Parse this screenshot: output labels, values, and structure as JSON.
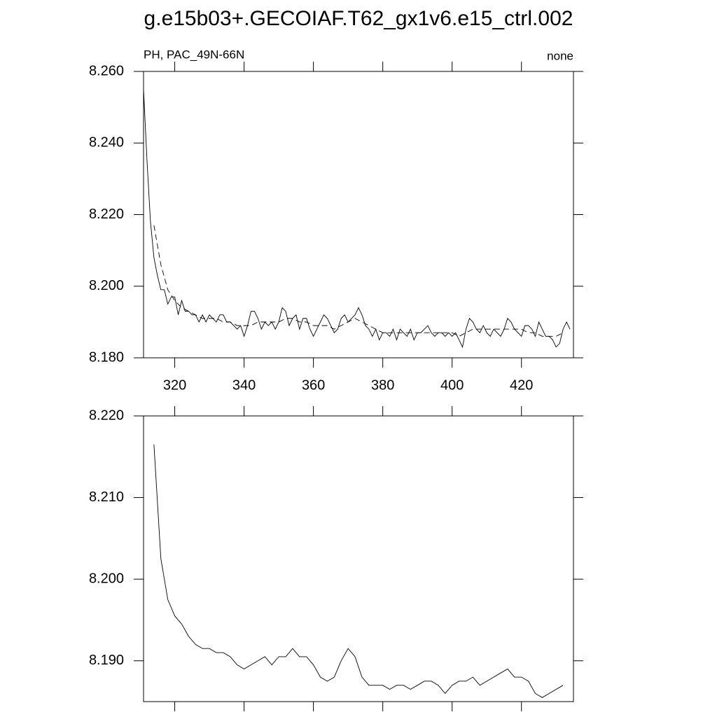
{
  "title": "g.e15b03+.GECOIAF.T62_gx1v6.e15_ctrl.002",
  "chart_data": [
    {
      "type": "line",
      "subtitle_left": "PH, PAC_49N-66N",
      "subtitle_right": "none",
      "xlim": [
        311,
        435
      ],
      "ylim": [
        8.18,
        8.26
      ],
      "xticks": [
        320,
        340,
        360,
        380,
        400,
        420
      ],
      "show_xtick_labels": true,
      "yticks": [
        {
          "value": 8.18,
          "label": "8.180"
        },
        {
          "value": 8.2,
          "label": "8.200"
        },
        {
          "value": 8.22,
          "label": "8.220"
        },
        {
          "value": 8.24,
          "label": "8.240"
        },
        {
          "value": 8.26,
          "label": "8.260"
        }
      ],
      "series": [
        {
          "color": "#000000",
          "line_style": "solid",
          "x": [
            311,
            312,
            313,
            314,
            315,
            316,
            317,
            318,
            319,
            320,
            321,
            322,
            323,
            324,
            325,
            326,
            327,
            328,
            329,
            330,
            331,
            332,
            333,
            334,
            335,
            336,
            337,
            338,
            339,
            340,
            341,
            342,
            343,
            344,
            345,
            346,
            347,
            348,
            349,
            350,
            351,
            352,
            353,
            354,
            355,
            356,
            357,
            358,
            359,
            360,
            361,
            362,
            363,
            364,
            365,
            366,
            367,
            368,
            369,
            370,
            371,
            372,
            373,
            374,
            375,
            376,
            377,
            378,
            379,
            380,
            381,
            382,
            383,
            384,
            385,
            386,
            387,
            388,
            389,
            390,
            391,
            392,
            393,
            394,
            395,
            396,
            397,
            398,
            399,
            400,
            401,
            402,
            403,
            404,
            405,
            406,
            407,
            408,
            409,
            410,
            411,
            412,
            413,
            414,
            415,
            416,
            417,
            418,
            419,
            420,
            421,
            422,
            423,
            424,
            425,
            426,
            427,
            428,
            429,
            430,
            431,
            432,
            433,
            434
          ],
          "values": [
            8.255,
            8.235,
            8.218,
            8.208,
            8.203,
            8.199,
            8.199,
            8.195,
            8.197,
            8.197,
            8.192,
            8.196,
            8.193,
            8.193,
            8.192,
            8.192,
            8.19,
            8.192,
            8.19,
            8.192,
            8.191,
            8.19,
            8.192,
            8.192,
            8.19,
            8.19,
            8.189,
            8.188,
            8.189,
            8.186,
            8.189,
            8.193,
            8.193,
            8.191,
            8.188,
            8.19,
            8.189,
            8.19,
            8.188,
            8.19,
            8.194,
            8.193,
            8.189,
            8.191,
            8.192,
            8.188,
            8.191,
            8.191,
            8.188,
            8.186,
            8.188,
            8.19,
            8.192,
            8.191,
            8.189,
            8.187,
            8.188,
            8.191,
            8.192,
            8.19,
            8.191,
            8.192,
            8.194,
            8.192,
            8.189,
            8.188,
            8.186,
            8.188,
            8.185,
            8.187,
            8.187,
            8.186,
            8.188,
            8.185,
            8.188,
            8.187,
            8.186,
            8.188,
            8.185,
            8.187,
            8.187,
            8.188,
            8.189,
            8.187,
            8.186,
            8.187,
            8.187,
            8.186,
            8.187,
            8.186,
            8.187,
            8.185,
            8.183,
            8.188,
            8.191,
            8.19,
            8.188,
            8.187,
            8.189,
            8.187,
            8.186,
            8.188,
            8.187,
            8.186,
            8.188,
            8.191,
            8.19,
            8.188,
            8.187,
            8.186,
            8.189,
            8.189,
            8.188,
            8.186,
            8.19,
            8.188,
            8.186,
            8.186,
            8.185,
            8.183,
            8.184,
            8.188,
            8.19,
            8.188
          ]
        },
        {
          "color": "#000000",
          "line_style": "dashed",
          "x": [
            314,
            316,
            318,
            320,
            322,
            324,
            326,
            328,
            330,
            332,
            334,
            336,
            338,
            340,
            342,
            344,
            346,
            348,
            350,
            352,
            354,
            356,
            358,
            360,
            362,
            364,
            366,
            368,
            370,
            372,
            374,
            376,
            378,
            380,
            382,
            384,
            386,
            388,
            390,
            392,
            394,
            396,
            398,
            400,
            402,
            404,
            406,
            408,
            410,
            412,
            414,
            416,
            418,
            420,
            422,
            424,
            426,
            428,
            430,
            432
          ],
          "values": [
            8.217,
            8.206,
            8.199,
            8.196,
            8.194,
            8.193,
            8.192,
            8.191,
            8.191,
            8.191,
            8.19,
            8.19,
            8.189,
            8.189,
            8.189,
            8.19,
            8.19,
            8.19,
            8.19,
            8.191,
            8.191,
            8.19,
            8.19,
            8.189,
            8.189,
            8.189,
            8.188,
            8.189,
            8.19,
            8.191,
            8.19,
            8.189,
            8.188,
            8.187,
            8.187,
            8.187,
            8.187,
            8.187,
            8.187,
            8.187,
            8.187,
            8.187,
            8.187,
            8.187,
            8.186,
            8.187,
            8.188,
            8.188,
            8.188,
            8.188,
            8.188,
            8.188,
            8.188,
            8.188,
            8.187,
            8.187,
            8.186,
            8.186,
            8.186,
            8.187
          ]
        }
      ]
    },
    {
      "type": "line",
      "xlim": [
        311,
        435
      ],
      "ylim": [
        8.185,
        8.22
      ],
      "xticks": [
        320,
        340,
        360,
        380,
        400,
        420
      ],
      "show_xtick_labels": false,
      "yticks": [
        {
          "value": 8.19,
          "label": "8.190"
        },
        {
          "value": 8.2,
          "label": "8.200"
        },
        {
          "value": 8.21,
          "label": "8.210"
        },
        {
          "value": 8.22,
          "label": "8.220"
        }
      ],
      "series": [
        {
          "color": "#000000",
          "line_style": "solid",
          "x": [
            314,
            316,
            318,
            320,
            322,
            324,
            326,
            328,
            330,
            332,
            334,
            336,
            338,
            340,
            342,
            344,
            346,
            348,
            350,
            352,
            354,
            356,
            358,
            360,
            362,
            364,
            366,
            368,
            370,
            372,
            374,
            376,
            378,
            380,
            382,
            384,
            386,
            388,
            390,
            392,
            394,
            396,
            398,
            400,
            402,
            404,
            406,
            408,
            410,
            412,
            414,
            416,
            418,
            420,
            422,
            424,
            426,
            428,
            430,
            432
          ],
          "values": [
            8.2165,
            8.2025,
            8.1975,
            8.1955,
            8.1945,
            8.193,
            8.192,
            8.1915,
            8.1915,
            8.191,
            8.191,
            8.1905,
            8.1895,
            8.189,
            8.1895,
            8.19,
            8.1905,
            8.1895,
            8.1905,
            8.1905,
            8.1915,
            8.1905,
            8.1905,
            8.1895,
            8.188,
            8.1875,
            8.188,
            8.19,
            8.1915,
            8.1905,
            8.188,
            8.187,
            8.187,
            8.187,
            8.1865,
            8.187,
            8.187,
            8.1865,
            8.187,
            8.1875,
            8.1875,
            8.187,
            8.186,
            8.187,
            8.1875,
            8.1875,
            8.188,
            8.187,
            8.1875,
            8.188,
            8.1885,
            8.189,
            8.188,
            8.188,
            8.1875,
            8.186,
            8.1855,
            8.186,
            8.1865,
            8.187
          ]
        }
      ]
    }
  ]
}
